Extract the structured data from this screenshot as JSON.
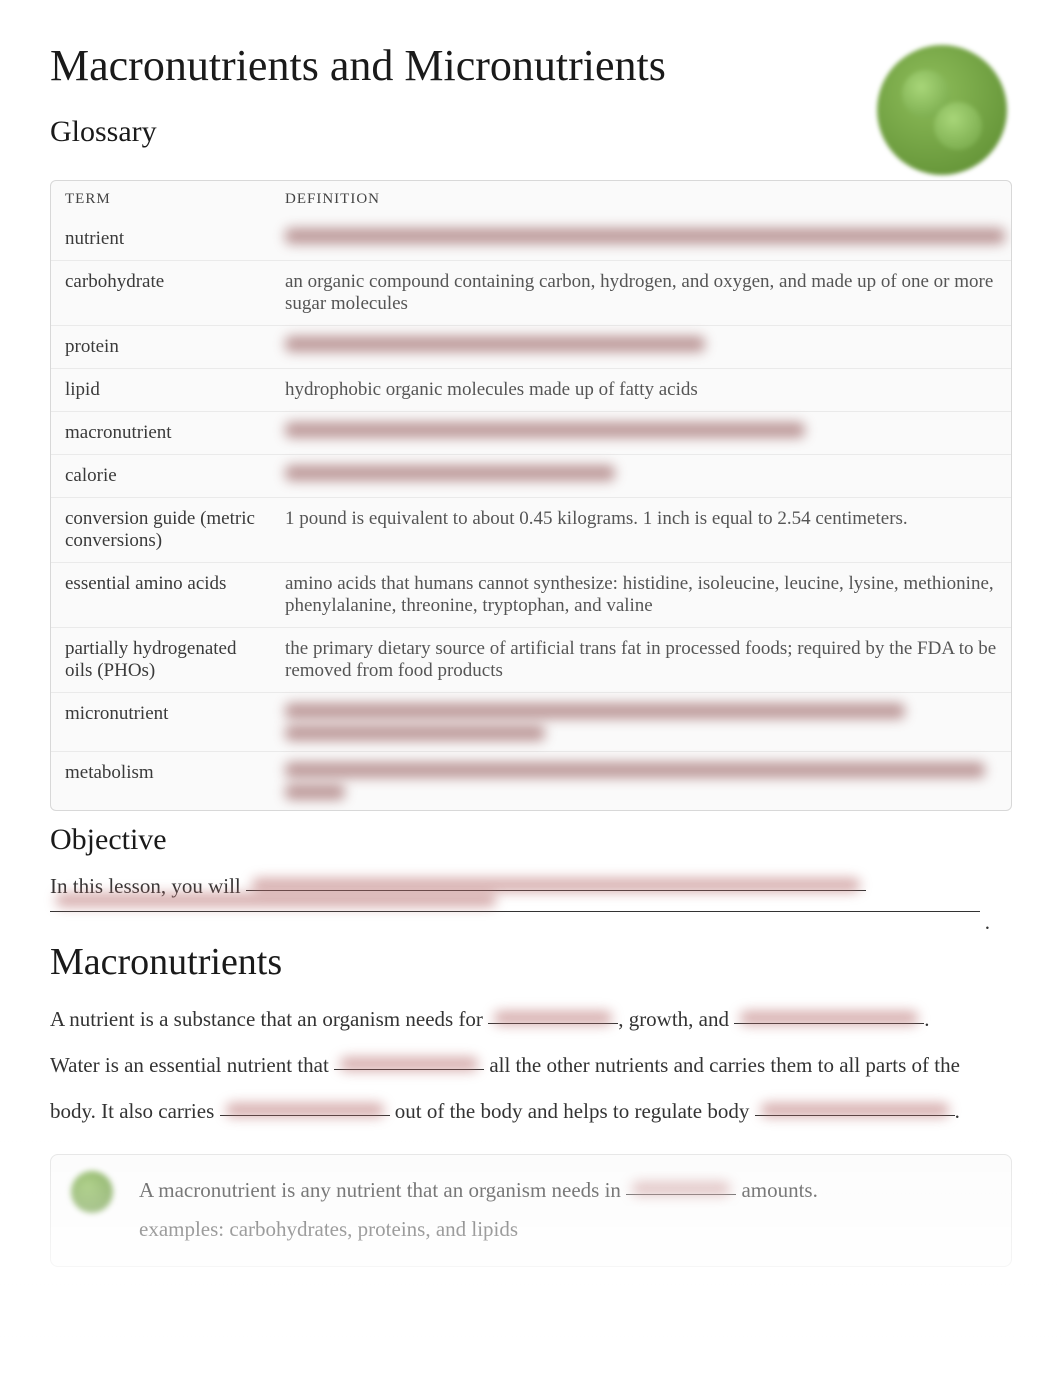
{
  "title": "Macronutrients and Micronutrients",
  "sections": {
    "glossary_heading": "Glossary",
    "objective_heading": "Objective",
    "macronutrients_heading": "Macronutrients"
  },
  "glossary": {
    "header_term": "TERM",
    "header_def": "DEFINITION",
    "rows": [
      {
        "term": "nutrient",
        "def": "",
        "blurred": true,
        "blur_widths": [
          720
        ]
      },
      {
        "term": "carbohydrate",
        "def": "an organic compound containing carbon, hydrogen, and oxygen, and made up of one or more sugar molecules",
        "blurred": false
      },
      {
        "term": "protein",
        "def": "",
        "blurred": true,
        "blur_widths": [
          420
        ]
      },
      {
        "term": "lipid",
        "def": "hydrophobic organic molecules made up of fatty acids",
        "blurred": false
      },
      {
        "term": "macronutrient",
        "def": "",
        "blurred": true,
        "blur_widths": [
          520
        ]
      },
      {
        "term": "calorie",
        "def": "",
        "blurred": true,
        "blur_widths": [
          330
        ]
      },
      {
        "term": "conversion guide (metric conversions)",
        "def": "1 pound is equivalent to about 0.45 kilograms. 1 inch is equal to 2.54 centimeters.",
        "blurred": false
      },
      {
        "term": "essential amino acids",
        "def": "amino acids that humans cannot synthesize: histidine, isoleucine, leucine, lysine, methionine, phenylalanine, threonine, tryptophan, and valine",
        "blurred": false
      },
      {
        "term": "partially hydrogenated oils (PHOs)",
        "def": "the primary dietary source of artificial trans fat in processed foods; required by the FDA to be removed from food products",
        "blurred": false
      },
      {
        "term": "micronutrient",
        "def": "",
        "blurred": true,
        "blur_widths": [
          620,
          260
        ]
      },
      {
        "term": "metabolism",
        "def": "",
        "blurred": true,
        "blur_widths": [
          700,
          60
        ]
      }
    ]
  },
  "objective": {
    "lead": "In this lesson, you will ",
    "blank1_width": 620,
    "line2_width": 930,
    "period": "."
  },
  "macro_body": {
    "p1_a": "A nutrient is a substance that an organism needs for ",
    "p1_blank1_w": 130,
    "p1_b": ", growth, and ",
    "p1_blank2_w": 190,
    "p1_c": ".",
    "p2_a": "Water is an essential nutrient that ",
    "p2_blank1_w": 150,
    "p2_b": " all the other nutrients and carries them to all parts of the",
    "p3_a": "body. It also carries ",
    "p3_blank1_w": 170,
    "p3_b": " out of the body and helps to regulate body ",
    "p3_blank2_w": 200,
    "p3_c": "."
  },
  "callout": {
    "line1_a": "A macronutrient is any nutrient that an organism needs in ",
    "line1_blank_w": 110,
    "line1_b": " amounts.",
    "line2": "examples: carbohydrates, proteins, and lipids"
  },
  "colors": {
    "text": "#333333",
    "muted": "#555555",
    "border": "#d8d8d8",
    "blur_tint": "#8b4a4a",
    "logo_green_light": "#8ebd5a",
    "logo_green_dark": "#5a8a2f",
    "background": "#ffffff"
  },
  "typography": {
    "h1_size_pt": 33,
    "h2_size_pt": 22,
    "h2_big_size_pt": 28,
    "body_size_pt": 16,
    "table_size_pt": 14,
    "font_family": "Georgia, Times New Roman, serif"
  }
}
